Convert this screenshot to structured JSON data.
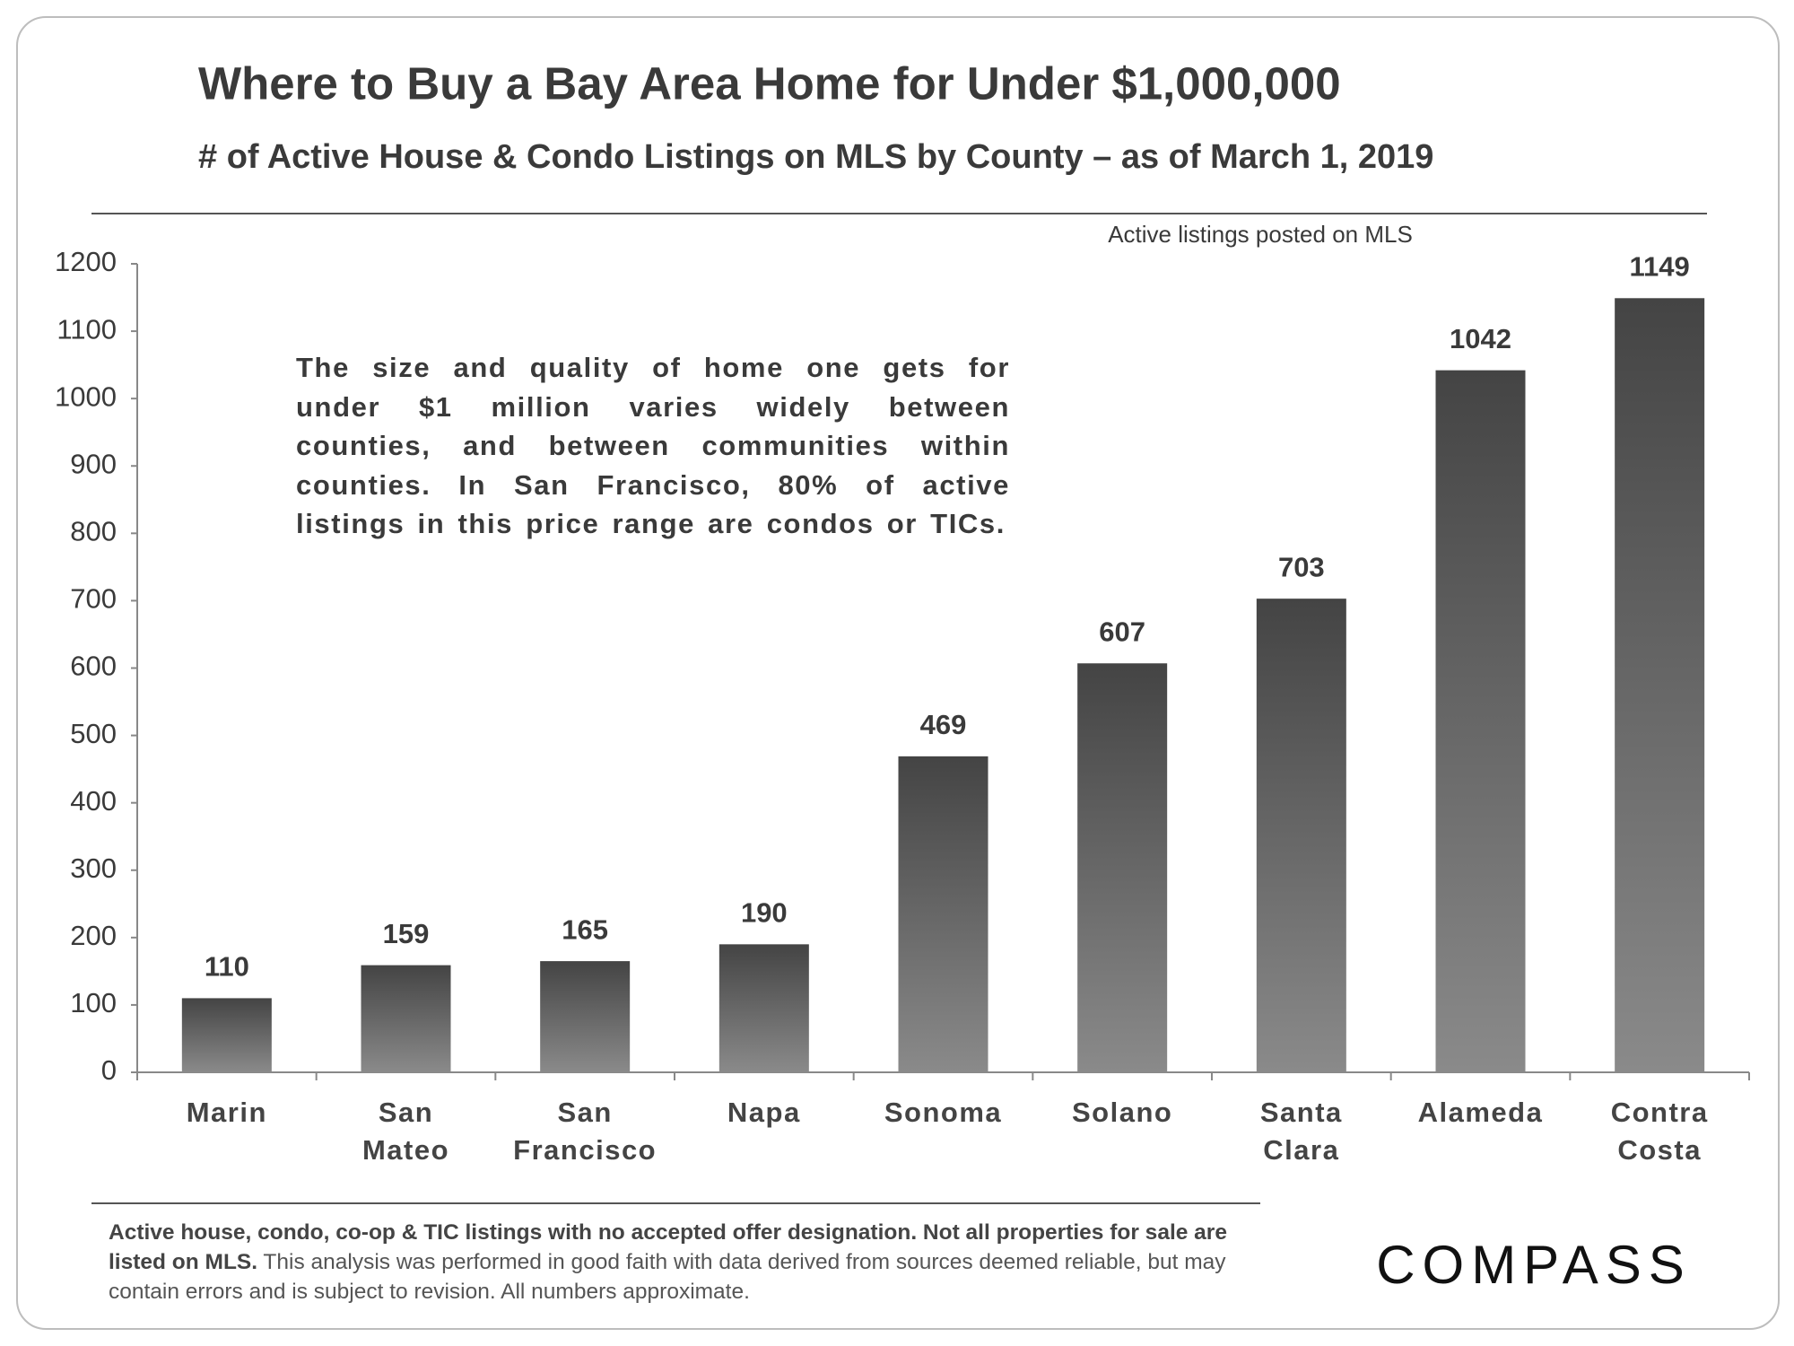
{
  "chart_data": {
    "type": "bar",
    "title": "Where to Buy a Bay Area Home for Under $1,000,000",
    "subtitle": "# of Active House & Condo Listings on MLS by County – as of March 1, 2019",
    "legend_note": "Active listings  posted on MLS",
    "annotation": "The size and quality of home one gets for under $1 million varies widely between counties, and between communities within counties. In San Francisco, 80% of active listings in this price range are condos or TICs.",
    "categories": [
      "Marin",
      "San\nMateo",
      "San\nFrancisco",
      "Napa",
      "Sonoma",
      "Solano",
      "Santa\nClara",
      "Alameda",
      "Contra\nCosta"
    ],
    "values": [
      110,
      159,
      165,
      190,
      469,
      607,
      703,
      1042,
      1149
    ],
    "color": [
      "#444444",
      "#8a8a8a"
    ],
    "ylim": [
      0,
      1200
    ],
    "yticks": [
      0,
      100,
      200,
      300,
      400,
      500,
      600,
      700,
      800,
      900,
      1000,
      1100,
      1200
    ]
  },
  "footer": {
    "note_bold": "Active house, condo, co-op & TIC listings with no accepted offer designation. Not all properties for sale are listed on MLS.",
    "note": " This analysis was performed  in good faith with data derived  from sources deemed reliable,  but may contain errors and is subject to revision.  All numbers  approximate.",
    "logo": "COMPASS"
  }
}
